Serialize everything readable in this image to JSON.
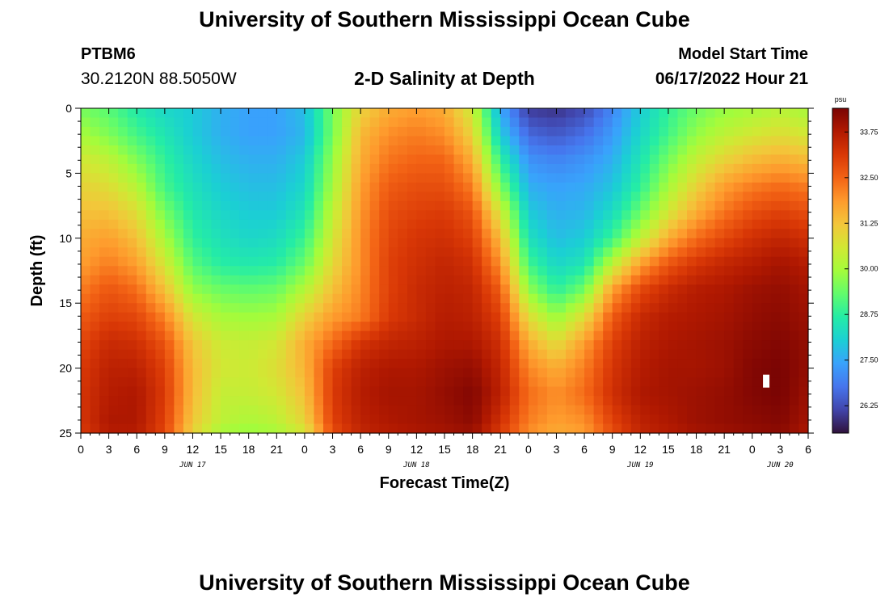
{
  "header": {
    "title": "University of Southern Mississippi Ocean Cube",
    "station": "PTBM6",
    "coords": "30.2120N  88.5050W",
    "subtitle": "2-D Salinity at Depth",
    "model_start_label": "Model Start Time",
    "model_start_value": "06/17/2022 Hour 21"
  },
  "footer": {
    "title": "University of Southern Mississippi Ocean Cube"
  },
  "chart_data": {
    "type": "heatmap",
    "title": "2-D Salinity at Depth",
    "xlabel": "Forecast Time(Z)",
    "ylabel": "Depth (ft)",
    "x_tick_labels": [
      "0",
      "3",
      "6",
      "9",
      "12",
      "15",
      "18",
      "21",
      "0",
      "3",
      "6",
      "9",
      "12",
      "15",
      "18",
      "21",
      "0",
      "3",
      "6",
      "9",
      "12",
      "15",
      "18",
      "21",
      "0",
      "3",
      "6"
    ],
    "x_range_hours": [
      0,
      78
    ],
    "date_labels": [
      {
        "text": "JUN 17",
        "hour": 12
      },
      {
        "text": "JUN 18",
        "hour": 36
      },
      {
        "text": "JUN 19",
        "hour": 60
      },
      {
        "text": "JUN 20",
        "hour": 75
      }
    ],
    "y_ticks": [
      0,
      5,
      10,
      15,
      20,
      25
    ],
    "y_range_ft": [
      0,
      25
    ],
    "colorbar": {
      "unit": "psu",
      "tick_labels": [
        "33.75",
        "32.50",
        "31.25",
        "30.00",
        "28.75",
        "27.50",
        "26.25"
      ],
      "tick_values": [
        33.75,
        32.5,
        31.25,
        30.0,
        28.75,
        27.5,
        26.25
      ],
      "vmin": 25.5,
      "vmax": 34.4,
      "colors": [
        "#30123b",
        "#4145ab",
        "#4675ed",
        "#39a2fc",
        "#1bcfd4",
        "#24eca6",
        "#61fc6c",
        "#a4fc3b",
        "#d1e834",
        "#f3c63a",
        "#fe9b2d",
        "#f36315",
        "#d93806",
        "#b11901",
        "#7a0403"
      ]
    },
    "depth_levels_ft": [
      0,
      2,
      4,
      6,
      8,
      10,
      12,
      14,
      16,
      18,
      20,
      22,
      24,
      25
    ],
    "time_knots_hours": [
      0,
      3,
      6,
      9,
      12,
      15,
      18,
      21,
      24,
      27,
      30,
      33,
      36,
      39,
      42,
      45,
      48,
      51,
      54,
      57,
      60,
      63,
      66,
      69,
      72,
      75,
      78
    ],
    "salinity_psu": [
      [
        29.5,
        29.2,
        28.6,
        28.2,
        28.0,
        27.6,
        27.4,
        27.4,
        27.8,
        29.5,
        31.0,
        31.6,
        31.8,
        31.6,
        30.5,
        27.5,
        26.0,
        25.9,
        26.2,
        27.0,
        28.0,
        28.8,
        29.4,
        29.8,
        30.0,
        30.2,
        30.0
      ],
      [
        30.0,
        29.6,
        29.0,
        28.5,
        28.0,
        27.6,
        27.4,
        27.4,
        27.7,
        29.5,
        31.4,
        32.0,
        32.2,
        32.0,
        31.0,
        28.0,
        26.6,
        26.4,
        26.7,
        27.3,
        28.2,
        29.0,
        29.8,
        30.3,
        30.6,
        30.8,
        30.6
      ],
      [
        30.6,
        30.3,
        29.6,
        28.8,
        28.2,
        27.8,
        27.6,
        27.6,
        28.0,
        29.8,
        31.6,
        32.3,
        32.5,
        32.5,
        31.6,
        28.8,
        27.2,
        27.0,
        27.2,
        27.6,
        28.5,
        29.5,
        30.4,
        31.0,
        31.4,
        31.6,
        31.4
      ],
      [
        31.0,
        30.8,
        30.2,
        29.0,
        28.4,
        28.0,
        27.8,
        27.8,
        28.2,
        30.0,
        31.8,
        32.6,
        32.8,
        32.8,
        32.2,
        29.6,
        27.6,
        27.4,
        27.5,
        27.9,
        28.8,
        30.0,
        31.0,
        31.8,
        32.2,
        32.4,
        32.2
      ],
      [
        31.3,
        31.3,
        30.8,
        29.5,
        28.6,
        28.2,
        28.0,
        28.0,
        28.5,
        30.3,
        31.9,
        32.8,
        33.0,
        33.1,
        32.7,
        30.6,
        28.0,
        27.6,
        27.7,
        28.3,
        29.4,
        30.6,
        31.6,
        32.3,
        32.8,
        33.0,
        32.8
      ],
      [
        31.6,
        31.8,
        31.3,
        30.0,
        28.8,
        28.4,
        28.2,
        28.3,
        28.9,
        30.6,
        32.0,
        32.9,
        33.2,
        33.3,
        33.0,
        31.4,
        28.4,
        27.8,
        28.0,
        28.9,
        30.3,
        31.6,
        32.4,
        32.9,
        33.3,
        33.5,
        33.3
      ],
      [
        31.8,
        32.2,
        31.8,
        30.6,
        29.2,
        28.7,
        28.6,
        28.7,
        29.4,
        30.9,
        32.0,
        33.0,
        33.3,
        33.5,
        33.3,
        32.0,
        29.0,
        28.2,
        28.5,
        30.3,
        31.8,
        32.7,
        33.2,
        33.5,
        33.7,
        33.9,
        33.7
      ],
      [
        32.2,
        32.7,
        32.4,
        31.3,
        29.8,
        29.4,
        29.3,
        29.4,
        30.2,
        31.3,
        32.1,
        33.0,
        33.4,
        33.6,
        33.5,
        32.6,
        29.8,
        28.8,
        29.5,
        31.8,
        32.9,
        33.4,
        33.7,
        33.8,
        34.0,
        34.1,
        33.9
      ],
      [
        32.6,
        33.0,
        32.9,
        32.1,
        30.6,
        30.0,
        29.9,
        30.0,
        31.0,
        31.8,
        32.2,
        33.1,
        33.4,
        33.7,
        33.6,
        33.0,
        30.8,
        29.8,
        30.8,
        32.6,
        33.4,
        33.7,
        33.8,
        33.9,
        34.1,
        34.2,
        34.0
      ],
      [
        32.9,
        33.4,
        33.3,
        32.7,
        31.2,
        30.5,
        30.4,
        30.6,
        31.6,
        32.4,
        33.2,
        33.5,
        33.6,
        33.8,
        33.8,
        33.3,
        31.6,
        30.8,
        31.8,
        33.0,
        33.6,
        33.8,
        33.9,
        34.0,
        34.2,
        34.3,
        34.1
      ],
      [
        33.1,
        33.6,
        33.6,
        33.0,
        31.4,
        30.6,
        30.5,
        30.8,
        31.5,
        33.0,
        33.6,
        33.8,
        33.8,
        34.0,
        34.1,
        33.5,
        32.1,
        31.6,
        32.2,
        33.2,
        33.7,
        33.9,
        33.9,
        34.0,
        34.3,
        34.4,
        34.1
      ],
      [
        33.2,
        33.7,
        33.8,
        33.1,
        31.4,
        30.4,
        30.4,
        30.6,
        31.3,
        33.1,
        33.7,
        33.9,
        33.9,
        34.1,
        34.3,
        33.6,
        32.4,
        32.0,
        32.4,
        33.3,
        33.8,
        33.9,
        34.0,
        34.1,
        34.3,
        34.4,
        34.0
      ],
      [
        33.2,
        33.8,
        33.8,
        33.0,
        31.2,
        30.3,
        30.1,
        30.3,
        31.0,
        33.0,
        33.6,
        33.8,
        33.9,
        34.0,
        34.2,
        33.3,
        32.2,
        31.8,
        32.0,
        33.0,
        33.6,
        33.8,
        34.0,
        34.1,
        34.2,
        34.3,
        33.9
      ],
      [
        33.1,
        33.7,
        33.7,
        32.9,
        31.0,
        30.0,
        29.8,
        30.0,
        30.6,
        32.8,
        33.5,
        33.7,
        33.8,
        33.9,
        34.0,
        33.1,
        32.0,
        31.6,
        31.8,
        32.8,
        33.5,
        33.7,
        33.9,
        34.0,
        34.1,
        34.2,
        33.8
      ]
    ],
    "markers": [
      {
        "label": "white-marker",
        "hour": 73.5,
        "depth_ft": 21.0
      }
    ]
  }
}
